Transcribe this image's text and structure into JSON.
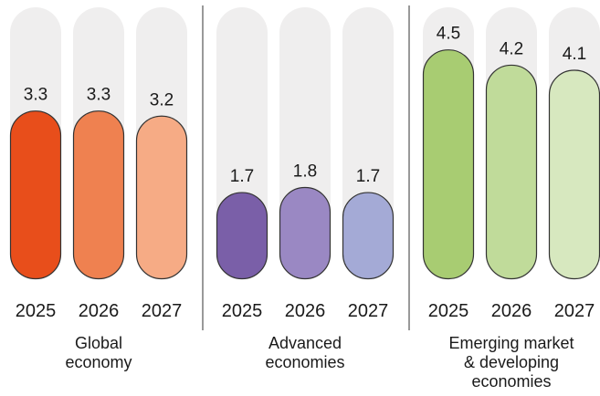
{
  "chart_data": {
    "type": "bar",
    "groups": [
      {
        "label_lines": [
          "Global",
          "economy"
        ],
        "bars": [
          {
            "year": "2025",
            "value": 3.3,
            "label": "3.3",
            "color": "#e84e1b"
          },
          {
            "year": "2026",
            "value": 3.3,
            "label": "3.3",
            "color": "#ef8150"
          },
          {
            "year": "2027",
            "value": 3.2,
            "label": "3.2",
            "color": "#f6ab85"
          }
        ]
      },
      {
        "label_lines": [
          "Advanced",
          "economies"
        ],
        "bars": [
          {
            "year": "2025",
            "value": 1.7,
            "label": "1.7",
            "color": "#7a5fa8"
          },
          {
            "year": "2026",
            "value": 1.8,
            "label": "1.8",
            "color": "#9a88c3"
          },
          {
            "year": "2027",
            "value": 1.7,
            "label": "1.7",
            "color": "#a4aad6"
          }
        ]
      },
      {
        "label_lines": [
          "Emerging market",
          "& developing",
          "economies"
        ],
        "bars": [
          {
            "year": "2025",
            "value": 4.5,
            "label": "4.5",
            "color": "#a8cc72"
          },
          {
            "year": "2026",
            "value": 4.2,
            "label": "4.2",
            "color": "#c0db9a"
          },
          {
            "year": "2027",
            "value": 4.1,
            "label": "4.1",
            "color": "#d7e8bf"
          }
        ]
      }
    ],
    "ylim": [
      0,
      5.3
    ],
    "track_color": "#efeeee",
    "divider_color": "#333333",
    "bar_outline_color": "#333333"
  }
}
